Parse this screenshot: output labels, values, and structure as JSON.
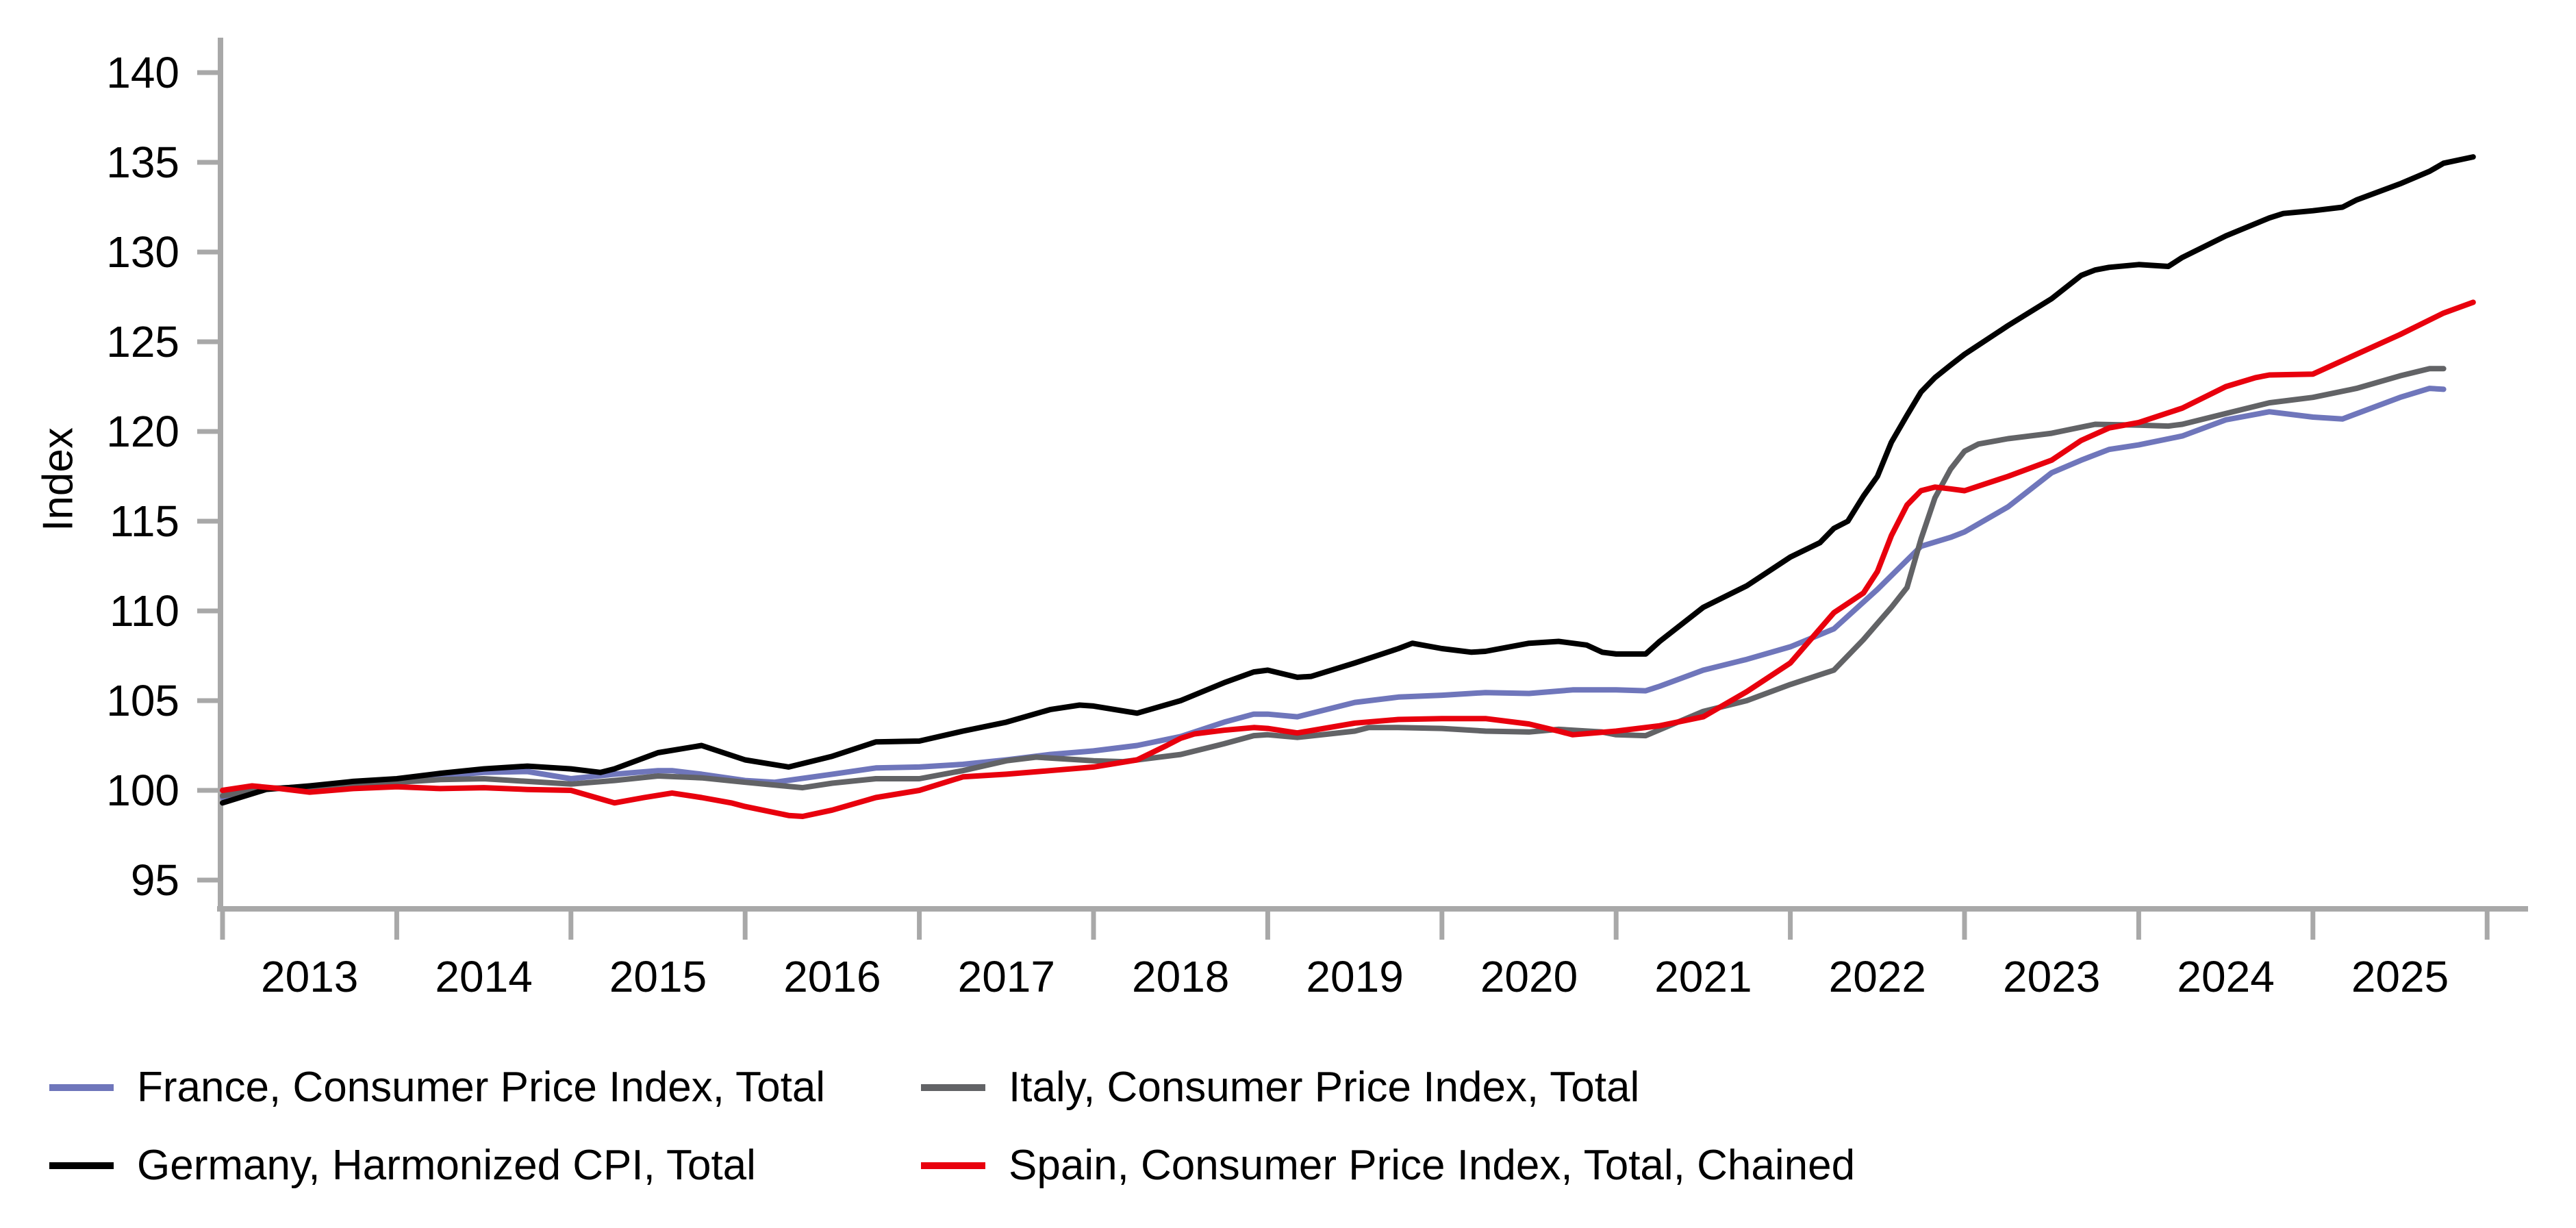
{
  "chart_data": {
    "type": "line",
    "title": "",
    "xlabel": "",
    "ylabel": "Index",
    "grid": false,
    "background": "#ffffff",
    "axis_color": "#a8a8a8",
    "ylim": [
      93.4,
      141.5
    ],
    "xlim": [
      2012.87,
      2026.3
    ],
    "y_ticks": [
      95,
      100,
      105,
      110,
      115,
      120,
      125,
      130,
      135,
      140
    ],
    "x_tick_years": [
      "2013",
      "2014",
      "2015",
      "2016",
      "2017",
      "2018",
      "2019",
      "2020",
      "2021",
      "2022",
      "2023",
      "2024",
      "2025"
    ],
    "legend_position": "bottom-left, two columns",
    "series": [
      {
        "name": "France, Consumer Price Index, Total",
        "color": "#6f76bb",
        "points": [
          [
            2013.0,
            99.6
          ],
          [
            2013.25,
            100.1
          ],
          [
            2013.5,
            100.2
          ],
          [
            2013.75,
            100.35
          ],
          [
            2014.0,
            100.5
          ],
          [
            2014.25,
            100.8
          ],
          [
            2014.5,
            101.0
          ],
          [
            2014.75,
            101.05
          ],
          [
            2015.0,
            100.65
          ],
          [
            2015.25,
            100.9
          ],
          [
            2015.5,
            101.1
          ],
          [
            2015.58,
            101.1
          ],
          [
            2015.75,
            100.9
          ],
          [
            2016.0,
            100.55
          ],
          [
            2016.17,
            100.45
          ],
          [
            2016.5,
            100.9
          ],
          [
            2016.75,
            101.25
          ],
          [
            2017.0,
            101.3
          ],
          [
            2017.25,
            101.45
          ],
          [
            2017.5,
            101.7
          ],
          [
            2017.75,
            102.0
          ],
          [
            2018.0,
            102.2
          ],
          [
            2018.25,
            102.5
          ],
          [
            2018.5,
            103.0
          ],
          [
            2018.75,
            103.8
          ],
          [
            2018.92,
            104.25
          ],
          [
            2019.0,
            104.25
          ],
          [
            2019.17,
            104.1
          ],
          [
            2019.5,
            104.9
          ],
          [
            2019.75,
            105.2
          ],
          [
            2020.0,
            105.3
          ],
          [
            2020.25,
            105.45
          ],
          [
            2020.5,
            105.4
          ],
          [
            2020.75,
            105.6
          ],
          [
            2021.0,
            105.6
          ],
          [
            2021.17,
            105.55
          ],
          [
            2021.25,
            105.8
          ],
          [
            2021.5,
            106.7
          ],
          [
            2021.75,
            107.3
          ],
          [
            2022.0,
            108.0
          ],
          [
            2022.25,
            109.0
          ],
          [
            2022.5,
            111.2
          ],
          [
            2022.75,
            113.6
          ],
          [
            2022.92,
            114.1
          ],
          [
            2023.0,
            114.4
          ],
          [
            2023.25,
            115.8
          ],
          [
            2023.5,
            117.7
          ],
          [
            2023.67,
            118.4
          ],
          [
            2023.83,
            119.0
          ],
          [
            2024.0,
            119.25
          ],
          [
            2024.25,
            119.75
          ],
          [
            2024.5,
            120.65
          ],
          [
            2024.75,
            121.1
          ],
          [
            2025.0,
            120.8
          ],
          [
            2025.17,
            120.7
          ],
          [
            2025.5,
            121.9
          ],
          [
            2025.67,
            122.4
          ],
          [
            2025.75,
            122.35
          ]
        ]
      },
      {
        "name": "Germany, Harmonized CPI, Total",
        "color": "#000000",
        "points": [
          [
            2013.0,
            99.3
          ],
          [
            2013.25,
            100.05
          ],
          [
            2013.5,
            100.25
          ],
          [
            2013.75,
            100.5
          ],
          [
            2014.0,
            100.65
          ],
          [
            2014.25,
            100.95
          ],
          [
            2014.5,
            101.2
          ],
          [
            2014.75,
            101.35
          ],
          [
            2015.0,
            101.2
          ],
          [
            2015.17,
            101.0
          ],
          [
            2015.25,
            101.2
          ],
          [
            2015.5,
            102.1
          ],
          [
            2015.75,
            102.5
          ],
          [
            2016.0,
            101.7
          ],
          [
            2016.25,
            101.3
          ],
          [
            2016.5,
            101.9
          ],
          [
            2016.75,
            102.7
          ],
          [
            2017.0,
            102.75
          ],
          [
            2017.25,
            103.3
          ],
          [
            2017.5,
            103.8
          ],
          [
            2017.75,
            104.5
          ],
          [
            2017.92,
            104.75
          ],
          [
            2018.0,
            104.7
          ],
          [
            2018.25,
            104.3
          ],
          [
            2018.5,
            105.0
          ],
          [
            2018.75,
            106.0
          ],
          [
            2018.92,
            106.6
          ],
          [
            2019.0,
            106.7
          ],
          [
            2019.17,
            106.3
          ],
          [
            2019.25,
            106.35
          ],
          [
            2019.5,
            107.1
          ],
          [
            2019.75,
            107.9
          ],
          [
            2019.83,
            108.2
          ],
          [
            2020.0,
            107.9
          ],
          [
            2020.17,
            107.7
          ],
          [
            2020.25,
            107.75
          ],
          [
            2020.5,
            108.2
          ],
          [
            2020.67,
            108.3
          ],
          [
            2020.83,
            108.1
          ],
          [
            2020.92,
            107.7
          ],
          [
            2021.0,
            107.6
          ],
          [
            2021.17,
            107.6
          ],
          [
            2021.25,
            108.3
          ],
          [
            2021.5,
            110.2
          ],
          [
            2021.75,
            111.4
          ],
          [
            2022.0,
            113.0
          ],
          [
            2022.17,
            113.8
          ],
          [
            2022.25,
            114.6
          ],
          [
            2022.33,
            115.0
          ],
          [
            2022.42,
            116.4
          ],
          [
            2022.5,
            117.5
          ],
          [
            2022.58,
            119.4
          ],
          [
            2022.67,
            120.9
          ],
          [
            2022.75,
            122.2
          ],
          [
            2022.83,
            123.0
          ],
          [
            2022.92,
            123.7
          ],
          [
            2023.0,
            124.3
          ],
          [
            2023.25,
            125.9
          ],
          [
            2023.5,
            127.4
          ],
          [
            2023.67,
            128.7
          ],
          [
            2023.75,
            129.0
          ],
          [
            2023.83,
            129.15
          ],
          [
            2024.0,
            129.3
          ],
          [
            2024.17,
            129.2
          ],
          [
            2024.25,
            129.7
          ],
          [
            2024.5,
            130.9
          ],
          [
            2024.75,
            131.9
          ],
          [
            2024.83,
            132.15
          ],
          [
            2025.0,
            132.3
          ],
          [
            2025.17,
            132.5
          ],
          [
            2025.25,
            132.9
          ],
          [
            2025.5,
            133.8
          ],
          [
            2025.67,
            134.5
          ],
          [
            2025.75,
            134.95
          ],
          [
            2025.92,
            135.3
          ]
        ]
      },
      {
        "name": "Italy, Consumer Price Index, Total",
        "color": "#626366",
        "points": [
          [
            2013.0,
            99.7
          ],
          [
            2013.25,
            100.1
          ],
          [
            2013.5,
            100.2
          ],
          [
            2013.75,
            100.3
          ],
          [
            2014.0,
            100.45
          ],
          [
            2014.25,
            100.6
          ],
          [
            2014.5,
            100.65
          ],
          [
            2014.75,
            100.5
          ],
          [
            2015.0,
            100.35
          ],
          [
            2015.25,
            100.55
          ],
          [
            2015.5,
            100.8
          ],
          [
            2015.75,
            100.7
          ],
          [
            2016.0,
            100.45
          ],
          [
            2016.33,
            100.15
          ],
          [
            2016.5,
            100.4
          ],
          [
            2016.75,
            100.65
          ],
          [
            2017.0,
            100.65
          ],
          [
            2017.25,
            101.1
          ],
          [
            2017.5,
            101.65
          ],
          [
            2017.67,
            101.85
          ],
          [
            2018.0,
            101.65
          ],
          [
            2018.17,
            101.6
          ],
          [
            2018.5,
            102.0
          ],
          [
            2018.75,
            102.6
          ],
          [
            2018.92,
            103.05
          ],
          [
            2019.0,
            103.1
          ],
          [
            2019.17,
            102.95
          ],
          [
            2019.5,
            103.3
          ],
          [
            2019.58,
            103.5
          ],
          [
            2019.75,
            103.5
          ],
          [
            2020.0,
            103.45
          ],
          [
            2020.25,
            103.3
          ],
          [
            2020.5,
            103.25
          ],
          [
            2020.67,
            103.4
          ],
          [
            2020.92,
            103.25
          ],
          [
            2021.0,
            103.1
          ],
          [
            2021.17,
            103.05
          ],
          [
            2021.5,
            104.4
          ],
          [
            2021.75,
            105.0
          ],
          [
            2022.0,
            105.9
          ],
          [
            2022.25,
            106.7
          ],
          [
            2022.42,
            108.4
          ],
          [
            2022.5,
            109.3
          ],
          [
            2022.58,
            110.2
          ],
          [
            2022.67,
            111.3
          ],
          [
            2022.75,
            114.0
          ],
          [
            2022.83,
            116.3
          ],
          [
            2022.92,
            117.9
          ],
          [
            2023.0,
            118.9
          ],
          [
            2023.08,
            119.3
          ],
          [
            2023.25,
            119.6
          ],
          [
            2023.5,
            119.9
          ],
          [
            2023.75,
            120.4
          ],
          [
            2024.0,
            120.35
          ],
          [
            2024.17,
            120.3
          ],
          [
            2024.25,
            120.4
          ],
          [
            2024.5,
            121.0
          ],
          [
            2024.75,
            121.6
          ],
          [
            2025.0,
            121.9
          ],
          [
            2025.25,
            122.4
          ],
          [
            2025.5,
            123.1
          ],
          [
            2025.67,
            123.5
          ],
          [
            2025.75,
            123.5
          ]
        ]
      },
      {
        "name": "Spain, Consumer Price Index, Total, Chained",
        "color": "#e8000d",
        "points": [
          [
            2013.0,
            100.0
          ],
          [
            2013.17,
            100.25
          ],
          [
            2013.33,
            100.1
          ],
          [
            2013.5,
            99.9
          ],
          [
            2013.75,
            100.1
          ],
          [
            2014.0,
            100.2
          ],
          [
            2014.25,
            100.1
          ],
          [
            2014.5,
            100.15
          ],
          [
            2014.75,
            100.05
          ],
          [
            2015.0,
            100.0
          ],
          [
            2015.25,
            99.3
          ],
          [
            2015.42,
            99.6
          ],
          [
            2015.58,
            99.85
          ],
          [
            2015.75,
            99.6
          ],
          [
            2015.92,
            99.3
          ],
          [
            2016.0,
            99.1
          ],
          [
            2016.25,
            98.6
          ],
          [
            2016.33,
            98.55
          ],
          [
            2016.5,
            98.9
          ],
          [
            2016.75,
            99.6
          ],
          [
            2017.0,
            100.0
          ],
          [
            2017.25,
            100.75
          ],
          [
            2017.5,
            100.9
          ],
          [
            2017.75,
            101.1
          ],
          [
            2018.0,
            101.3
          ],
          [
            2018.25,
            101.7
          ],
          [
            2018.42,
            102.5
          ],
          [
            2018.5,
            102.9
          ],
          [
            2018.58,
            103.15
          ],
          [
            2018.75,
            103.35
          ],
          [
            2018.92,
            103.5
          ],
          [
            2019.0,
            103.45
          ],
          [
            2019.17,
            103.2
          ],
          [
            2019.5,
            103.75
          ],
          [
            2019.75,
            103.95
          ],
          [
            2020.0,
            104.0
          ],
          [
            2020.25,
            104.0
          ],
          [
            2020.5,
            103.7
          ],
          [
            2020.67,
            103.3
          ],
          [
            2020.75,
            103.1
          ],
          [
            2021.0,
            103.3
          ],
          [
            2021.25,
            103.6
          ],
          [
            2021.5,
            104.1
          ],
          [
            2021.75,
            105.5
          ],
          [
            2022.0,
            107.1
          ],
          [
            2022.25,
            109.9
          ],
          [
            2022.42,
            111.0
          ],
          [
            2022.5,
            112.2
          ],
          [
            2022.58,
            114.2
          ],
          [
            2022.67,
            115.9
          ],
          [
            2022.75,
            116.7
          ],
          [
            2022.83,
            116.9
          ],
          [
            2022.92,
            116.8
          ],
          [
            2023.0,
            116.7
          ],
          [
            2023.25,
            117.5
          ],
          [
            2023.5,
            118.4
          ],
          [
            2023.67,
            119.5
          ],
          [
            2023.83,
            120.2
          ],
          [
            2024.0,
            120.5
          ],
          [
            2024.25,
            121.3
          ],
          [
            2024.5,
            122.5
          ],
          [
            2024.67,
            123.0
          ],
          [
            2024.75,
            123.15
          ],
          [
            2025.0,
            123.2
          ],
          [
            2025.25,
            124.3
          ],
          [
            2025.5,
            125.4
          ],
          [
            2025.75,
            126.6
          ],
          [
            2025.92,
            127.2
          ]
        ]
      }
    ]
  }
}
